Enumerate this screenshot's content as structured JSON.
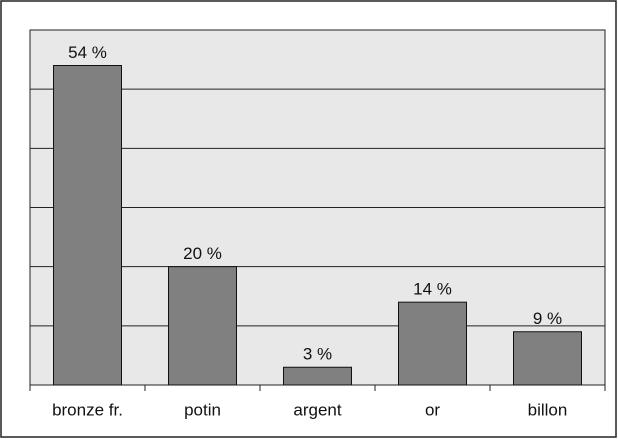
{
  "chart_data": {
    "type": "bar",
    "categories": [
      "bronze fr.",
      "potin",
      "argent",
      "or",
      "billon"
    ],
    "values": [
      54,
      20,
      3,
      14,
      9
    ],
    "value_labels": [
      "54 %",
      "20 %",
      "3 %",
      "14 %",
      "9 %"
    ],
    "color": "#808080",
    "ylim": [
      0,
      60
    ],
    "yticks": [
      0,
      10,
      20,
      30,
      40,
      50,
      60
    ],
    "grid": true
  }
}
